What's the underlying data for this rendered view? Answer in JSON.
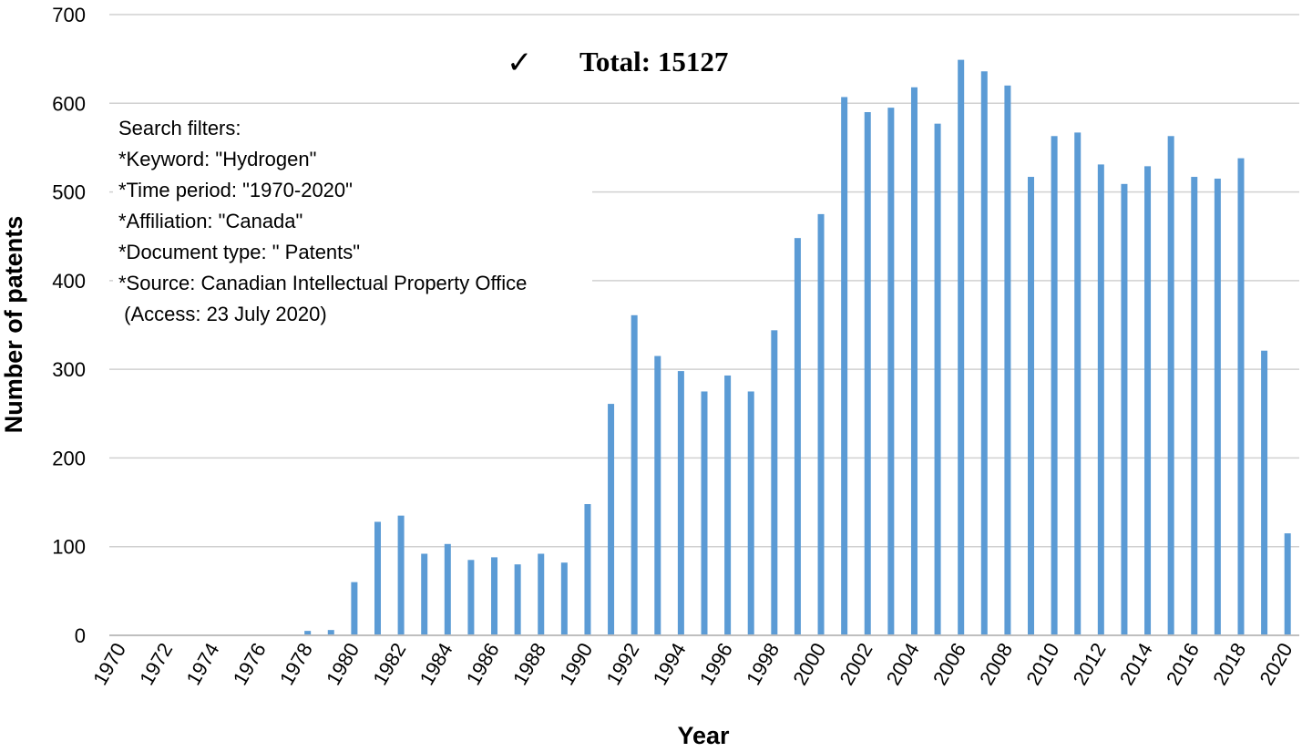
{
  "chart_data": {
    "type": "bar",
    "xlabel": "Year",
    "ylabel": "Number of patents",
    "ylim": [
      0,
      700
    ],
    "yticks": [
      "0",
      "100",
      "200",
      "300",
      "400",
      "500",
      "600",
      "700"
    ],
    "grid": true,
    "bar_color": "#5b9bd5",
    "x_tick_labels_shown": [
      "1970",
      "1972",
      "1974",
      "1976",
      "1978",
      "1980",
      "1982",
      "1984",
      "1986",
      "1988",
      "1990",
      "1992",
      "1994",
      "1996",
      "1998",
      "2000",
      "2002",
      "2004",
      "2006",
      "2008",
      "2010",
      "2012",
      "2014",
      "2016",
      "2018",
      "2020"
    ],
    "categories": [
      "1970",
      "1971",
      "1972",
      "1973",
      "1974",
      "1975",
      "1976",
      "1977",
      "1978",
      "1979",
      "1980",
      "1981",
      "1982",
      "1983",
      "1984",
      "1985",
      "1986",
      "1987",
      "1988",
      "1989",
      "1990",
      "1991",
      "1992",
      "1993",
      "1994",
      "1995",
      "1996",
      "1997",
      "1998",
      "1999",
      "2000",
      "2001",
      "2002",
      "2003",
      "2004",
      "2005",
      "2006",
      "2007",
      "2008",
      "2009",
      "2010",
      "2011",
      "2012",
      "2013",
      "2014",
      "2015",
      "2016",
      "2017",
      "2018",
      "2019",
      "2020"
    ],
    "values": [
      0,
      0,
      0,
      0,
      0,
      0,
      1,
      1,
      5,
      6,
      60,
      128,
      135,
      92,
      103,
      85,
      88,
      80,
      92,
      82,
      148,
      261,
      361,
      315,
      298,
      275,
      293,
      275,
      344,
      448,
      475,
      607,
      590,
      595,
      618,
      577,
      649,
      636,
      620,
      517,
      563,
      567,
      531,
      509,
      529,
      563,
      517,
      515,
      538,
      321,
      115
    ],
    "annotations": {
      "check_symbol": "✓",
      "total": "Total: 15127",
      "filters": [
        "Search filters:",
        "*Keyword: \"Hydrogen\"",
        "*Time period: \"1970-2020\"",
        "*Affiliation: \"Canada\"",
        "*Document type: \" Patents\"",
        "*Source: Canadian Intellectual Property Office",
        " (Access: 23 July 2020)"
      ]
    }
  }
}
